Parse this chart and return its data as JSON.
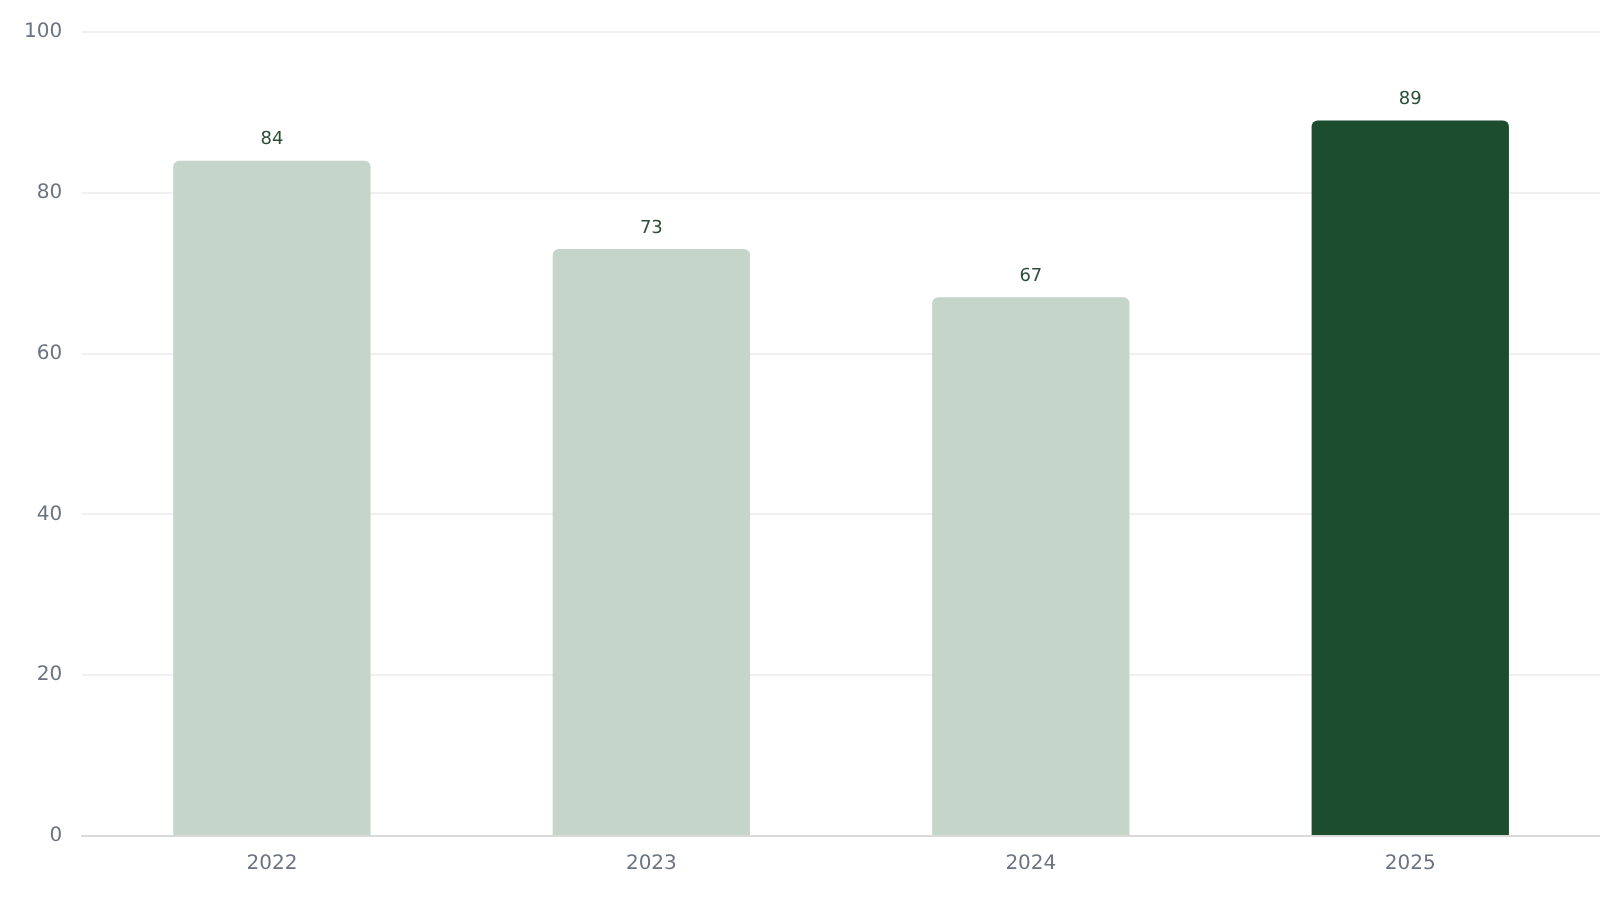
{
  "chart_data": {
    "type": "bar",
    "categories": [
      "2022",
      "2023",
      "2024",
      "2025"
    ],
    "values": [
      84,
      73,
      67,
      89
    ],
    "colors": [
      "#c5d5c9",
      "#c5d5c9",
      "#c5d5c9",
      "#1b4d2e"
    ],
    "ylim": [
      0,
      100
    ],
    "yticks": [
      0,
      20,
      40,
      60,
      80,
      100
    ],
    "grid": "y",
    "data_labels": true,
    "legend": false
  }
}
